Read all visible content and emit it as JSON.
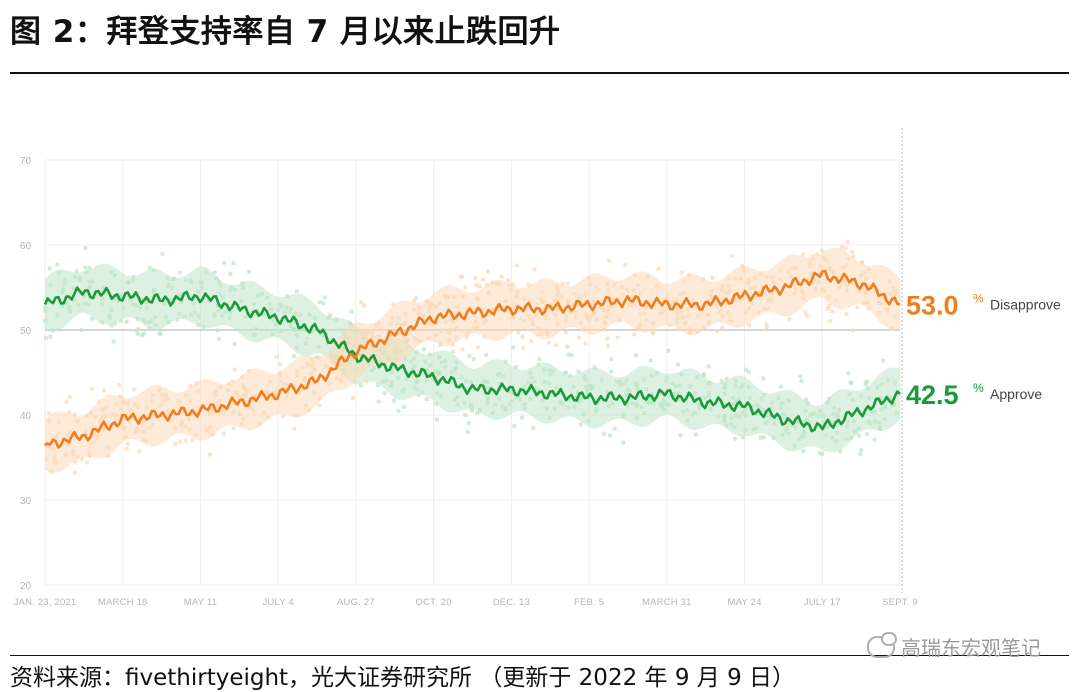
{
  "title": "图 2：拜登支持率自 7 月以来止跌回升",
  "source": "资料来源：fivethirtyeight，光大证券研究所 （更新于 2022 年 9 月 9 日）",
  "watermark": "高瑞东宏观笔记",
  "colors": {
    "approve": "#1a9a3a",
    "disapprove": "#f07d1e",
    "approve_band": "#bfe6c8",
    "disapprove_band": "#fbd9b8"
  },
  "chart_data": {
    "type": "line",
    "title": "",
    "xlabel": "",
    "ylabel": "",
    "ylim": [
      20,
      70
    ],
    "yticks": [
      20,
      30,
      40,
      50,
      60,
      70
    ],
    "grid": true,
    "reference_line": 50,
    "x_tick_labels": [
      "JAN. 23, 2021",
      "MARCH 18",
      "MAY 11",
      "JULY 4",
      "AUG. 27",
      "OCT. 20",
      "DEC. 13",
      "FEB. 5",
      "MARCH 31",
      "MAY 24",
      "JULY 17",
      "SEPT. 9"
    ],
    "x": [
      "2021-01-23",
      "2021-02-20",
      "2021-03-18",
      "2021-04-15",
      "2021-05-11",
      "2021-06-08",
      "2021-07-04",
      "2021-08-01",
      "2021-08-27",
      "2021-09-24",
      "2021-10-20",
      "2021-11-17",
      "2021-12-13",
      "2022-01-10",
      "2022-02-05",
      "2022-03-05",
      "2022-03-31",
      "2022-04-28",
      "2022-05-24",
      "2022-06-21",
      "2022-07-17",
      "2022-08-14",
      "2022-09-09"
    ],
    "series": [
      {
        "name": "Approve",
        "end_label": "42.5",
        "values": [
          53.0,
          54.5,
          54.0,
          53.5,
          54.0,
          52.5,
          51.5,
          50.0,
          47.0,
          45.5,
          44.5,
          43.0,
          43.0,
          42.5,
          42.0,
          42.0,
          42.5,
          41.5,
          41.0,
          39.5,
          38.5,
          40.5,
          42.5
        ]
      },
      {
        "name": "Disapprove",
        "end_label": "53.0",
        "values": [
          36.5,
          37.5,
          39.5,
          40.0,
          40.5,
          41.5,
          42.5,
          44.0,
          47.5,
          49.5,
          51.5,
          52.0,
          52.5,
          52.5,
          53.0,
          53.5,
          53.0,
          53.0,
          54.0,
          55.0,
          56.5,
          55.5,
          53.0
        ]
      }
    ],
    "end_labels": {
      "percent": "%",
      "approve_text": "Approve",
      "disapprove_text": "Disapprove"
    }
  }
}
